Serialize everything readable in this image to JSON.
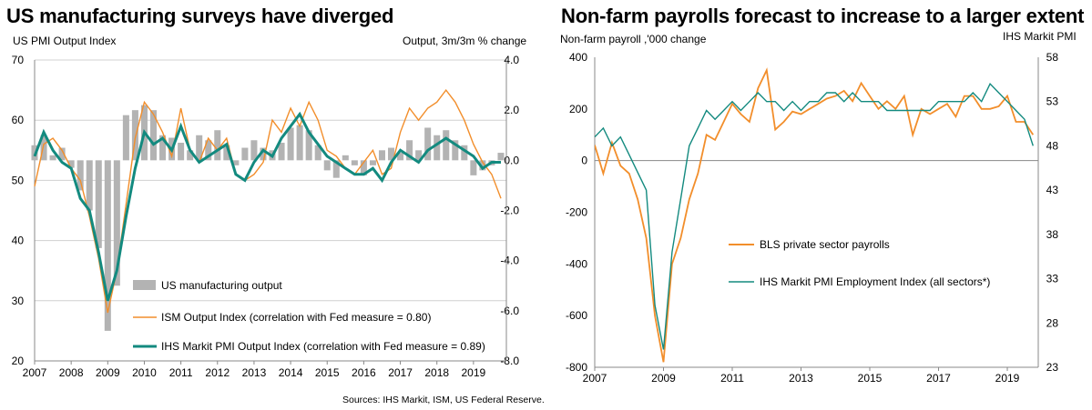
{
  "chart_data": [
    {
      "type": "bar+line",
      "title": "US manufacturing surveys have diverged",
      "left_axis_label": "US PMI Output Index",
      "right_axis_label": "Output, 3m/3m % change",
      "source": "Sources: IHS Markit, ISM, US Federal Reserve.",
      "x_ticks": [
        "2007",
        "2008",
        "2009",
        "2010",
        "2011",
        "2012",
        "2013",
        "2014",
        "2015",
        "2016",
        "2017",
        "2018",
        "2019"
      ],
      "xlim": [
        2007,
        2019.9
      ],
      "left_ylim": [
        20,
        70
      ],
      "left_ticks": [
        "70",
        "60",
        "50",
        "40",
        "30",
        "20"
      ],
      "right_ylim": [
        -8.0,
        4.0
      ],
      "right_ticks": [
        "4.0",
        "2.0",
        "0.0",
        "-2.0",
        "-4.0",
        "-6.0",
        "-8.0"
      ],
      "grid": true,
      "legend": [
        {
          "label": "US manufacturing output",
          "color": "#b3b3b3",
          "kind": "bar"
        },
        {
          "label": "ISM Output Index (correlation with Fed measure = 0.80)",
          "color": "#f28e2b",
          "kind": "line"
        },
        {
          "label": "IHS Markit PMI Output Index (correlation with Fed measure = 0.89)",
          "color": "#138a7f",
          "kind": "thickline"
        }
      ],
      "series": [
        {
          "name": "US manufacturing output",
          "axis": "right",
          "color": "#b3b3b3",
          "x": [
            2007.0,
            2007.25,
            2007.5,
            2007.75,
            2008.0,
            2008.25,
            2008.5,
            2008.75,
            2009.0,
            2009.25,
            2009.5,
            2009.75,
            2010.0,
            2010.25,
            2010.5,
            2010.75,
            2011.0,
            2011.25,
            2011.5,
            2011.75,
            2012.0,
            2012.25,
            2012.5,
            2012.75,
            2013.0,
            2013.25,
            2013.5,
            2013.75,
            2014.0,
            2014.25,
            2014.5,
            2014.75,
            2015.0,
            2015.25,
            2015.5,
            2015.75,
            2016.0,
            2016.25,
            2016.5,
            2016.75,
            2017.0,
            2017.25,
            2017.5,
            2017.75,
            2018.0,
            2018.25,
            2018.5,
            2018.75,
            2019.0,
            2019.25,
            2019.5,
            2019.75
          ],
          "values": [
            0.6,
            1.0,
            0.2,
            0.5,
            -0.3,
            -1.2,
            -2.0,
            -3.5,
            -6.8,
            -5.0,
            1.8,
            2.0,
            2.2,
            2.0,
            1.0,
            0.9,
            0.7,
            0.4,
            1.0,
            0.8,
            1.2,
            0.6,
            -0.2,
            0.5,
            0.8,
            0.5,
            0.4,
            0.7,
            1.3,
            1.4,
            1.2,
            0.6,
            -0.4,
            -0.7,
            0.2,
            -0.2,
            -0.6,
            -0.2,
            0.4,
            0.5,
            0.3,
            0.8,
            0.4,
            1.3,
            1.0,
            1.2,
            0.8,
            0.6,
            -0.6,
            -0.4,
            -0.2,
            0.3
          ]
        },
        {
          "name": "ISM Output Index (correlation with Fed measure = 0.80)",
          "axis": "left",
          "color": "#f28e2b",
          "x": [
            2007.0,
            2007.25,
            2007.5,
            2007.75,
            2008.0,
            2008.25,
            2008.5,
            2008.75,
            2009.0,
            2009.25,
            2009.5,
            2009.75,
            2010.0,
            2010.25,
            2010.5,
            2010.75,
            2011.0,
            2011.25,
            2011.5,
            2011.75,
            2012.0,
            2012.25,
            2012.5,
            2012.75,
            2013.0,
            2013.25,
            2013.5,
            2013.75,
            2014.0,
            2014.25,
            2014.5,
            2014.75,
            2015.0,
            2015.25,
            2015.5,
            2015.75,
            2016.0,
            2016.25,
            2016.5,
            2016.75,
            2017.0,
            2017.25,
            2017.5,
            2017.75,
            2018.0,
            2018.25,
            2018.5,
            2018.75,
            2019.0,
            2019.25,
            2019.5,
            2019.75
          ],
          "values": [
            49,
            56,
            57,
            55,
            52,
            50,
            44,
            37,
            28,
            35,
            46,
            57,
            63,
            61,
            58,
            54,
            62,
            55,
            53,
            57,
            55,
            57,
            51,
            50,
            51,
            53,
            60,
            58,
            62,
            59,
            63,
            60,
            55,
            54,
            52,
            51,
            53,
            55,
            51,
            52,
            58,
            62,
            60,
            62,
            63,
            65,
            63,
            60,
            56,
            53,
            51,
            47
          ]
        },
        {
          "name": "IHS Markit PMI Output Index (correlation with Fed measure = 0.89)",
          "axis": "left",
          "color": "#138a7f",
          "x": [
            2007.0,
            2007.25,
            2007.5,
            2007.75,
            2008.0,
            2008.25,
            2008.5,
            2008.75,
            2009.0,
            2009.25,
            2009.5,
            2009.75,
            2010.0,
            2010.25,
            2010.5,
            2010.75,
            2011.0,
            2011.25,
            2011.5,
            2011.75,
            2012.0,
            2012.25,
            2012.5,
            2012.75,
            2013.0,
            2013.25,
            2013.5,
            2013.75,
            2014.0,
            2014.25,
            2014.5,
            2014.75,
            2015.0,
            2015.25,
            2015.5,
            2015.75,
            2016.0,
            2016.25,
            2016.5,
            2016.75,
            2017.0,
            2017.25,
            2017.5,
            2017.75,
            2018.0,
            2018.25,
            2018.5,
            2018.75,
            2019.0,
            2019.25,
            2019.5,
            2019.75
          ],
          "values": [
            54,
            58,
            55,
            53,
            52,
            47,
            45,
            38,
            30,
            35,
            44,
            52,
            58,
            56,
            57,
            55,
            59,
            55,
            53,
            54,
            55,
            56,
            51,
            50,
            53,
            55,
            54,
            57,
            59,
            61,
            58,
            56,
            54,
            53,
            52,
            51,
            51,
            52,
            50,
            53,
            55,
            54,
            53,
            55,
            56,
            57,
            56,
            55,
            54,
            52,
            53,
            53
          ]
        }
      ]
    },
    {
      "type": "line",
      "title": "Non-farm payrolls forecast to increase to a larger extent",
      "left_axis_label": "Non-farm payroll  ,'000 change",
      "right_axis_label": "IHS Markit  PMI",
      "x_ticks": [
        "2007",
        "2009",
        "2011",
        "2013",
        "2015",
        "2017",
        "2019"
      ],
      "xlim": [
        2007,
        2019.9
      ],
      "left_ylim": [
        -800,
        400
      ],
      "left_ticks": [
        "400",
        "200",
        "0",
        "-200",
        "-400",
        "-600",
        "-800"
      ],
      "right_ylim": [
        23,
        58
      ],
      "right_ticks": [
        "58",
        "53",
        "48",
        "43",
        "38",
        "33",
        "28",
        "23"
      ],
      "grid": false,
      "legend": [
        {
          "label": "BLS private sector payrolls",
          "color": "#f28e2b"
        },
        {
          "label": "IHS Markit PMI Employment Index (all sectors*)",
          "color": "#138a7f"
        }
      ],
      "series": [
        {
          "name": "BLS private sector payrolls",
          "axis": "left",
          "color": "#f28e2b",
          "x": [
            2007.0,
            2007.25,
            2007.5,
            2007.75,
            2008.0,
            2008.25,
            2008.5,
            2008.75,
            2009.0,
            2009.25,
            2009.5,
            2009.75,
            2010.0,
            2010.25,
            2010.5,
            2010.75,
            2011.0,
            2011.25,
            2011.5,
            2011.75,
            2012.0,
            2012.25,
            2012.5,
            2012.75,
            2013.0,
            2013.25,
            2013.5,
            2013.75,
            2014.0,
            2014.25,
            2014.5,
            2014.75,
            2015.0,
            2015.25,
            2015.5,
            2015.75,
            2016.0,
            2016.25,
            2016.5,
            2016.75,
            2017.0,
            2017.25,
            2017.5,
            2017.75,
            2018.0,
            2018.25,
            2018.5,
            2018.75,
            2019.0,
            2019.25,
            2019.5,
            2019.75
          ],
          "values": [
            60,
            -50,
            70,
            -20,
            -50,
            -150,
            -300,
            -600,
            -780,
            -400,
            -300,
            -150,
            -50,
            100,
            80,
            150,
            220,
            180,
            150,
            280,
            350,
            120,
            150,
            190,
            180,
            200,
            220,
            240,
            250,
            270,
            230,
            300,
            250,
            200,
            230,
            200,
            250,
            100,
            200,
            180,
            200,
            220,
            170,
            250,
            250,
            200,
            200,
            210,
            250,
            150,
            150,
            100
          ]
        },
        {
          "name": "IHS Markit PMI Employment Index (all sectors*)",
          "axis": "right",
          "color": "#138a7f",
          "x": [
            2007.0,
            2007.25,
            2007.5,
            2007.75,
            2008.0,
            2008.25,
            2008.5,
            2008.75,
            2009.0,
            2009.25,
            2009.5,
            2009.75,
            2010.0,
            2010.25,
            2010.5,
            2010.75,
            2011.0,
            2011.25,
            2011.5,
            2011.75,
            2012.0,
            2012.25,
            2012.5,
            2012.75,
            2013.0,
            2013.25,
            2013.5,
            2013.75,
            2014.0,
            2014.25,
            2014.5,
            2014.75,
            2015.0,
            2015.25,
            2015.5,
            2015.75,
            2016.0,
            2016.25,
            2016.5,
            2016.75,
            2017.0,
            2017.25,
            2017.5,
            2017.75,
            2018.0,
            2018.25,
            2018.5,
            2018.75,
            2019.0,
            2019.25,
            2019.5,
            2019.75
          ],
          "values": [
            49,
            50,
            48,
            49,
            47,
            45,
            43,
            30,
            25,
            36,
            42,
            48,
            50,
            52,
            51,
            52,
            53,
            52,
            53,
            54,
            53,
            53,
            52,
            53,
            52,
            53,
            53,
            54,
            54,
            53,
            54,
            53,
            53,
            53,
            52,
            52,
            52,
            52,
            52,
            52,
            53,
            53,
            53,
            53,
            54,
            53,
            55,
            54,
            53,
            52,
            51,
            48
          ]
        }
      ]
    }
  ]
}
